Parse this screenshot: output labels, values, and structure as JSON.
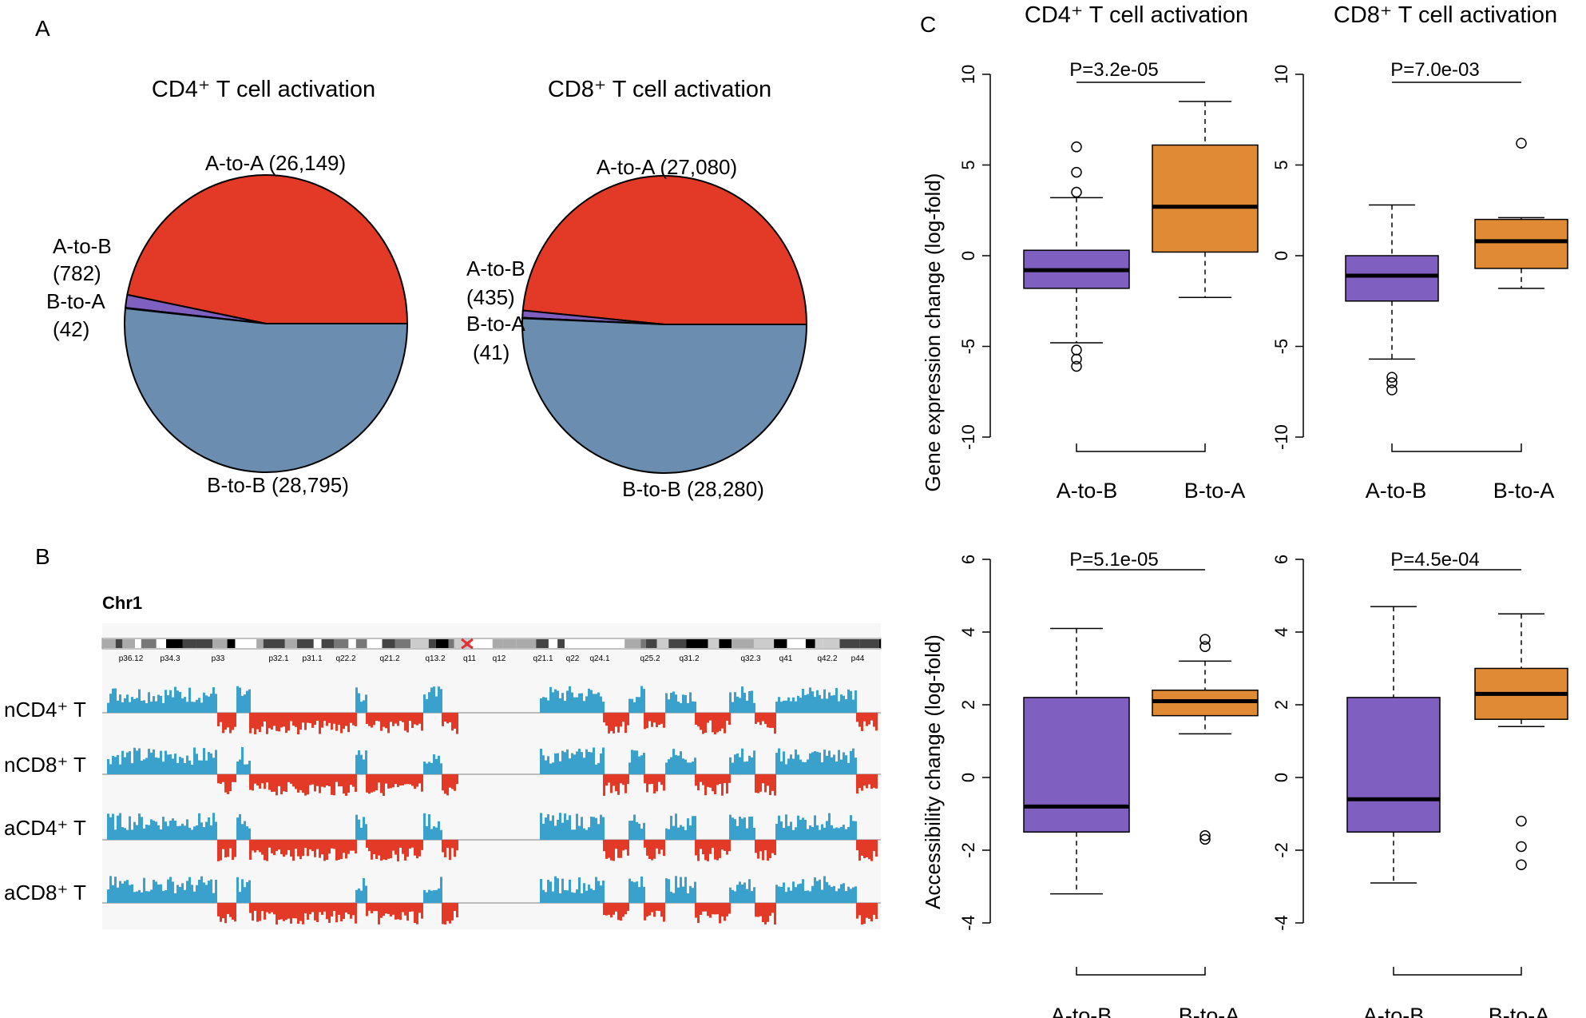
{
  "panel_labels": {
    "a": "A",
    "b": "B",
    "c": "C"
  },
  "colors": {
    "a_to_a": "#e33a27",
    "b_to_b": "#6a8db0",
    "switch": "#7f5fbf",
    "box_atob": "#7f5fbf",
    "box_btoa": "#e08a35",
    "track_pos": "#3aa0cc",
    "track_neg": "#e33a27"
  },
  "chart_data": [
    {
      "type": "pie",
      "id": "pie-cd4",
      "title": "CD4⁺  T cell activation",
      "slices": [
        {
          "name": "A-to-A",
          "value": 26149,
          "label": "A-to-A (26,149)"
        },
        {
          "name": "A-to-B",
          "value": 782,
          "label_line1": "A-to-B",
          "label_line2": "(782)"
        },
        {
          "name": "B-to-A",
          "value": 42,
          "label_line1": "B-to-A",
          "label_line2": "(42)"
        },
        {
          "name": "B-to-B",
          "value": 28795,
          "label": "B-to-B  (28,795)"
        }
      ]
    },
    {
      "type": "pie",
      "id": "pie-cd8",
      "title": "CD8⁺ T cell activation",
      "slices": [
        {
          "name": "A-to-A",
          "value": 27080,
          "label": "A-to-A (27,080)"
        },
        {
          "name": "A-to-B",
          "value": 435,
          "label_line1": "A-to-B",
          "label_line2": "(435)"
        },
        {
          "name": "B-to-A",
          "value": 41,
          "label_line1": "B-to-A",
          "label_line2": "(41)"
        },
        {
          "name": "B-to-B",
          "value": 28280,
          "label": "B-to-B (28,280)"
        }
      ]
    },
    {
      "type": "genome-track",
      "id": "compartment-tracks",
      "chromosome": "Chr1",
      "bands": [
        "p36.12",
        "p34.3",
        "p33",
        "p32.1",
        "p31.1",
        "q22.2",
        "q21.2",
        "q13.2",
        "q11",
        "q12",
        "q21.1",
        "q22",
        "q24.1",
        "q25.2",
        "q31.2",
        "q32.3",
        "q41",
        "q42.2",
        "p44"
      ],
      "tracks": [
        "nCD4⁺ T",
        "nCD8⁺ T",
        "aCD4⁺ T",
        "aCD8⁺ T"
      ]
    },
    {
      "type": "box",
      "id": "box-cd4-expr",
      "title": "CD4⁺ T cell activation",
      "ylabel": "Gene expression change (log-fold)",
      "ylim": [
        -10,
        10
      ],
      "yticks": [
        -10,
        -5,
        0,
        5,
        10
      ],
      "categories": [
        "A-to-B",
        "B-to-A"
      ],
      "pvalue": "P=3.2e-05",
      "boxes": [
        {
          "whisker_low": -4.8,
          "q1": -1.8,
          "median": -0.8,
          "q3": 0.3,
          "whisker_high": 3.2,
          "outliers": [
            3.5,
            4.6,
            6.0,
            -5.2,
            -5.7,
            -6.1
          ]
        },
        {
          "whisker_low": -2.3,
          "q1": 0.2,
          "median": 2.7,
          "q3": 6.1,
          "whisker_high": 8.5,
          "outliers": []
        }
      ]
    },
    {
      "type": "box",
      "id": "box-cd8-expr",
      "title": "CD8⁺ T cell activation",
      "ylabel": "",
      "ylim": [
        -10,
        10
      ],
      "yticks": [
        -10,
        -5,
        0,
        5,
        10
      ],
      "categories": [
        "A-to-B",
        "B-to-A"
      ],
      "pvalue": "P=7.0e-03",
      "boxes": [
        {
          "whisker_low": -5.7,
          "q1": -2.5,
          "median": -1.1,
          "q3": 0.0,
          "whisker_high": 2.8,
          "outliers": [
            -6.7,
            -7.0,
            -7.4
          ]
        },
        {
          "whisker_low": -1.8,
          "q1": -0.7,
          "median": 0.8,
          "q3": 2.0,
          "whisker_high": 2.1,
          "outliers": [
            6.2
          ]
        }
      ]
    },
    {
      "type": "box",
      "id": "box-cd4-access",
      "title": "",
      "ylabel": "Accessibility change (log-fold)",
      "ylim": [
        -4,
        6
      ],
      "yticks": [
        -4,
        -2,
        0,
        2,
        4,
        6
      ],
      "categories": [
        "A-to-B",
        "B-to-A"
      ],
      "pvalue": "P=5.1e-05",
      "boxes": [
        {
          "whisker_low": -3.2,
          "q1": -1.5,
          "median": -0.8,
          "q3": 2.2,
          "whisker_high": 4.1,
          "outliers": []
        },
        {
          "whisker_low": 1.2,
          "q1": 1.7,
          "median": 2.1,
          "q3": 2.4,
          "whisker_high": 3.2,
          "outliers": [
            3.6,
            3.8,
            -1.6,
            -1.7
          ]
        }
      ]
    },
    {
      "type": "box",
      "id": "box-cd8-access",
      "title": "",
      "ylabel": "",
      "ylim": [
        -4,
        6
      ],
      "yticks": [
        -4,
        -2,
        0,
        2,
        4,
        6
      ],
      "categories": [
        "A-to-B",
        "B-to-A"
      ],
      "pvalue": "P=4.5e-04",
      "boxes": [
        {
          "whisker_low": -2.9,
          "q1": -1.5,
          "median": -0.6,
          "q3": 2.2,
          "whisker_high": 4.7,
          "outliers": []
        },
        {
          "whisker_low": 1.4,
          "q1": 1.6,
          "median": 2.3,
          "q3": 3.0,
          "whisker_high": 4.5,
          "outliers": [
            -1.2,
            -1.9,
            -2.4
          ]
        }
      ]
    }
  ]
}
